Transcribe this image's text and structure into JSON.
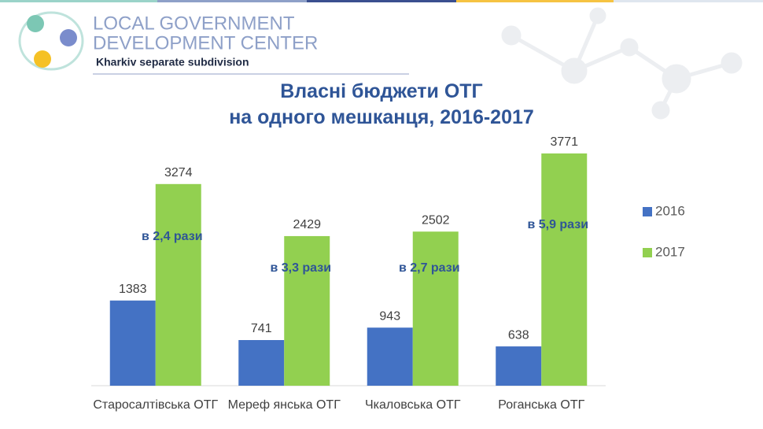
{
  "logo": {
    "line1": "LOCAL GOVERNMENT",
    "line2": "DEVELOPMENT CENTER",
    "subtitle": "Kharkiv separate subdivision"
  },
  "chart_data": {
    "type": "bar",
    "title": "Власні бюджети ОТГ\nна одного мешканця, 2016-2017",
    "categories": [
      "Старосалтівська ОТГ",
      "Мереф янська ОТГ",
      "Чкаловська ОТГ",
      "Роганська ОТГ"
    ],
    "series": [
      {
        "name": "2016",
        "color": "#4472c4",
        "values": [
          1383,
          741,
          943,
          638
        ]
      },
      {
        "name": "2017",
        "color": "#92d050",
        "values": [
          3274,
          2429,
          2502,
          3771
        ]
      }
    ],
    "annotations": [
      "в 2,4 рази",
      "в 3,3 рази",
      "в 2,7 рази",
      "в 5,9 рази"
    ],
    "ylim": [
      0,
      4000
    ],
    "legend": "right"
  }
}
